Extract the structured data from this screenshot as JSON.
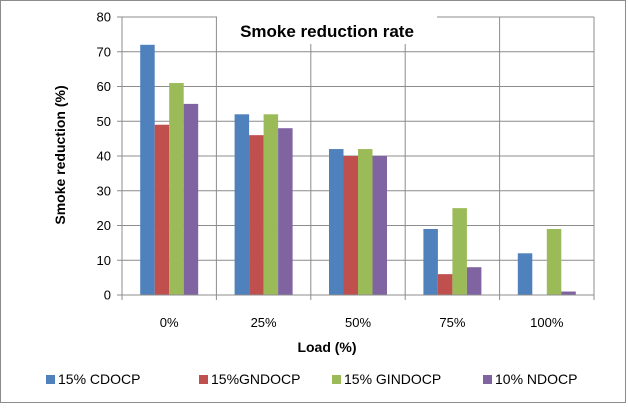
{
  "chart_data": {
    "type": "bar",
    "title": "Smoke reduction rate",
    "xlabel": "Load (%)",
    "ylabel": "Smoke reduction (%)",
    "categories": [
      "0%",
      "25%",
      "50%",
      "75%",
      "100%"
    ],
    "ylim": [
      0,
      80
    ],
    "yticks": [
      0,
      10,
      20,
      30,
      40,
      50,
      60,
      70,
      80
    ],
    "grid": true,
    "legend_position": "bottom",
    "series": [
      {
        "name": "15% CDOCP",
        "color": "#4f81bd",
        "values": [
          72,
          52,
          42,
          19,
          12
        ]
      },
      {
        "name": "15%GNDOCP",
        "color": "#c0504d",
        "values": [
          49,
          46,
          40,
          6,
          0
        ]
      },
      {
        "name": "15% GINDOCP",
        "color": "#9bbb59",
        "values": [
          61,
          52,
          42,
          25,
          19
        ]
      },
      {
        "name": "10% NDOCP",
        "color": "#8064a2",
        "values": [
          55,
          48,
          40,
          8,
          1
        ]
      }
    ]
  }
}
